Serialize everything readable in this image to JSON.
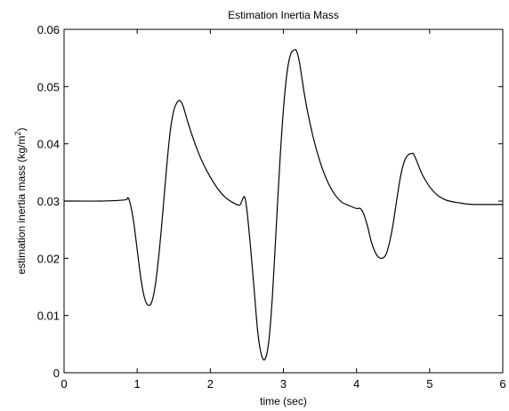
{
  "chart_data": {
    "type": "line",
    "title": "Estimation Inertia Mass",
    "xlabel": "time (sec)",
    "ylabel": "estimation inertia mass (kg/m",
    "ylabel_superscript": "2",
    "ylabel_suffix": ")",
    "xlim": [
      0,
      6
    ],
    "ylim": [
      0,
      0.06
    ],
    "x_ticks": [
      0,
      1,
      2,
      3,
      4,
      5,
      6
    ],
    "x_tick_labels": [
      "0",
      "1",
      "2",
      "3",
      "4",
      "5",
      "6"
    ],
    "y_ticks": [
      0,
      0.01,
      0.02,
      0.03,
      0.04,
      0.05,
      0.06
    ],
    "y_tick_labels": [
      "0",
      "0.01",
      "0.02",
      "0.03",
      "0.04",
      "0.05",
      "0.06"
    ],
    "grid": false,
    "line_color": "#000000",
    "series": [
      {
        "x": [
          0,
          0.5,
          0.83,
          0.87,
          0.9,
          0.95,
          1.0,
          1.05,
          1.1,
          1.15,
          1.2,
          1.25,
          1.3,
          1.35,
          1.4,
          1.45,
          1.5,
          1.55,
          1.59,
          1.63,
          1.7,
          1.8,
          1.9,
          2.0,
          2.1,
          2.2,
          2.3,
          2.4,
          2.44,
          2.47,
          2.5,
          2.55,
          2.6,
          2.65,
          2.7,
          2.75,
          2.8,
          2.85,
          2.9,
          2.95,
          3.0,
          3.05,
          3.1,
          3.15,
          3.18,
          3.22,
          3.3,
          3.4,
          3.5,
          3.6,
          3.7,
          3.8,
          3.9,
          4.0,
          4.05,
          4.1,
          4.15,
          4.2,
          4.25,
          4.3,
          4.35,
          4.4,
          4.45,
          4.5,
          4.55,
          4.6,
          4.65,
          4.7,
          4.75,
          4.78,
          4.82,
          4.9,
          5.0,
          5.1,
          5.2,
          5.3,
          5.4,
          5.5,
          5.6,
          5.7,
          5.8,
          6.0
        ],
        "y": [
          0.03,
          0.03,
          0.0302,
          0.0306,
          0.0298,
          0.0265,
          0.0215,
          0.0165,
          0.0131,
          0.0118,
          0.0124,
          0.0155,
          0.021,
          0.028,
          0.0355,
          0.042,
          0.0458,
          0.0473,
          0.0475,
          0.0465,
          0.0435,
          0.0397,
          0.0366,
          0.0342,
          0.0322,
          0.0307,
          0.0298,
          0.0293,
          0.0303,
          0.0307,
          0.0285,
          0.022,
          0.0145,
          0.007,
          0.0031,
          0.0024,
          0.0055,
          0.0135,
          0.025,
          0.0365,
          0.046,
          0.0525,
          0.0557,
          0.0564,
          0.0562,
          0.0542,
          0.0477,
          0.0415,
          0.0369,
          0.0335,
          0.0312,
          0.0298,
          0.0292,
          0.0287,
          0.0287,
          0.0277,
          0.0256,
          0.023,
          0.0212,
          0.0202,
          0.02,
          0.0206,
          0.0227,
          0.026,
          0.0302,
          0.0342,
          0.0368,
          0.038,
          0.0383,
          0.0382,
          0.0371,
          0.0346,
          0.0325,
          0.0311,
          0.0303,
          0.0299,
          0.0297,
          0.0295,
          0.0294,
          0.0294,
          0.0294,
          0.0294
        ]
      }
    ]
  }
}
